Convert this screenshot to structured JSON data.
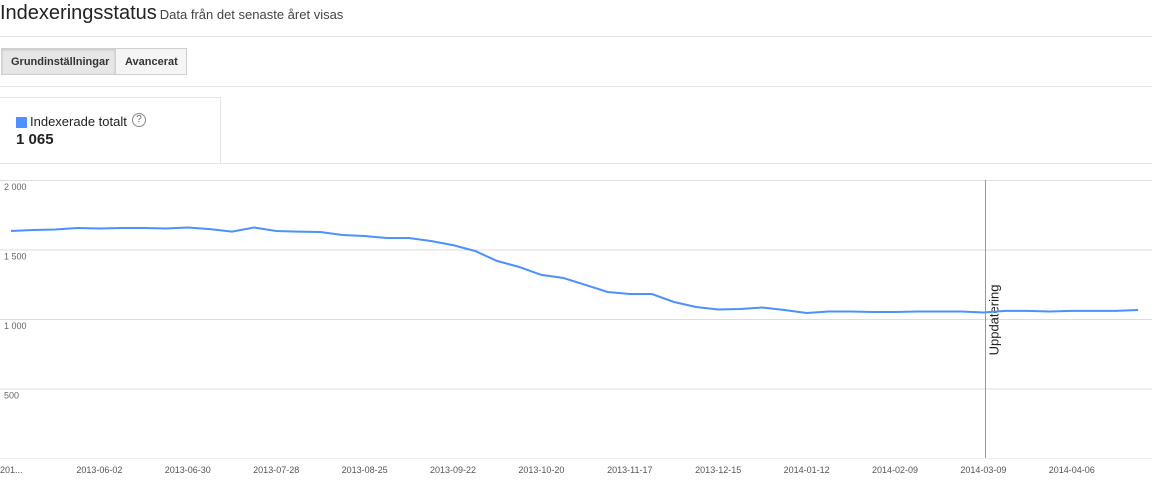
{
  "header": {
    "title": "Indexeringsstatus",
    "subtitle": "Data från det senaste året visas"
  },
  "tabs": [
    "Grundinställningar",
    "Avancerat"
  ],
  "summary": {
    "value": "1 065"
  },
  "chart_data": {
    "type": "line",
    "categories": [
      "201...",
      null,
      null,
      null,
      "2013-06-02",
      null,
      null,
      null,
      "2013-06-30",
      null,
      null,
      null,
      "2013-07-28",
      null,
      null,
      null,
      "2013-08-25",
      null,
      null,
      null,
      "2013-09-22",
      null,
      null,
      null,
      "2013-10-20",
      null,
      null,
      null,
      "2013-11-17",
      null,
      null,
      null,
      "2013-12-15",
      null,
      null,
      null,
      "2014-01-12",
      null,
      null,
      null,
      "2014-02-09",
      null,
      null,
      null,
      "2014-03-09",
      null,
      null,
      null,
      "2014-04-06",
      null,
      null,
      null
    ],
    "series": [
      {
        "name": "Indexerade totalt",
        "color": "#4d90fe",
        "values": [
          1633,
          1640,
          1644,
          1655,
          1651,
          1655,
          1655,
          1651,
          1658,
          1647,
          1629,
          1658,
          1633,
          1629,
          1626,
          1604,
          1597,
          1583,
          1583,
          1561,
          1532,
          1489,
          1417,
          1374,
          1317,
          1295,
          1245,
          1194,
          1180,
          1180,
          1122,
          1086,
          1068,
          1072,
          1083,
          1065,
          1043,
          1054,
          1054,
          1050,
          1050,
          1054,
          1054,
          1054,
          1047,
          1058,
          1058,
          1054,
          1058,
          1058,
          1058,
          1065
        ]
      }
    ],
    "ylim": [
      0,
      2000
    ],
    "yticks": [
      {
        "value": 2000,
        "label": "2 000"
      },
      {
        "value": 1500,
        "label": "1 500"
      },
      {
        "value": 1000,
        "label": "1 000"
      },
      500
    ],
    "grid": true,
    "annotation": {
      "text": "Uppdatering",
      "category": "2014-03-09"
    }
  }
}
